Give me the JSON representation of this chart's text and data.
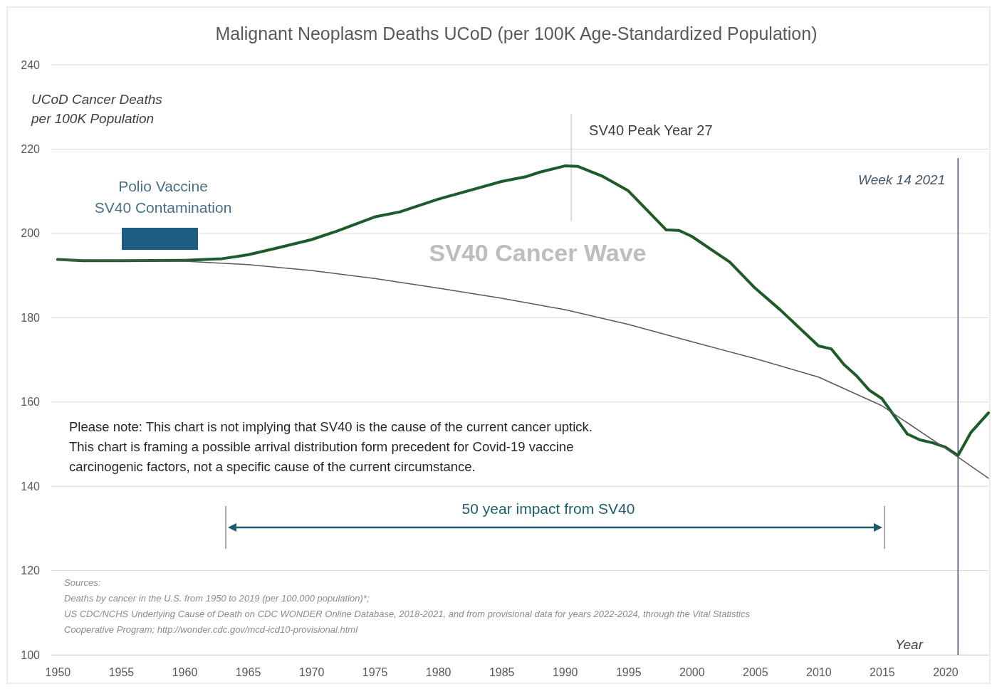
{
  "chart_data": {
    "type": "line",
    "title": "Malignant Neoplasm Deaths UCoD (per 100K Age-Standardized Population)",
    "xlabel": "Year",
    "ylabel": "UCoD Cancer Deaths\nper 100K Population",
    "xlim": [
      1949.5,
      2023.4
    ],
    "xticks": [
      1950,
      1955,
      1960,
      1965,
      1970,
      1975,
      1980,
      1985,
      1990,
      1995,
      2000,
      2005,
      2010,
      2015,
      2020
    ],
    "ylim": [
      100,
      240
    ],
    "yticks": [
      100,
      120,
      140,
      160,
      180,
      200,
      220,
      240
    ],
    "grid": "y",
    "series": [
      {
        "color": "#1e5b2a",
        "x": [
          1950,
          1952,
          1955,
          1960,
          1963,
          1965,
          1967,
          1970,
          1972,
          1975,
          1977,
          1980,
          1985,
          1987,
          1988,
          1990,
          1991,
          1993,
          1995,
          1998,
          1999,
          2000,
          2003,
          2005,
          2007,
          2010,
          2011,
          2012,
          2013,
          2014,
          2015,
          2016,
          2017,
          2018,
          2019,
          2020,
          2021,
          2022,
          2023.4
        ],
        "values": [
          193.8,
          193.5,
          193.5,
          193.6,
          194,
          194.9,
          196.3,
          198.5,
          200.5,
          203.9,
          205.1,
          208.1,
          212.3,
          213.5,
          214.5,
          216,
          215.9,
          213.5,
          210.1,
          200.8,
          200.7,
          199.3,
          193.2,
          187,
          181.8,
          173.3,
          172.6,
          168.9,
          166.2,
          162.8,
          160.8,
          156.6,
          152.4,
          151,
          150.3,
          149.3,
          147.3,
          152.7,
          157.4
        ]
      },
      {
        "color": "#595959",
        "x": [
          1950,
          1955,
          1960,
          1965,
          1970,
          1975,
          1980,
          1985,
          1990,
          1995,
          2000,
          2005,
          2010,
          2015,
          2020,
          2023.4
        ],
        "values": [
          193.7,
          193.6,
          193.4,
          192.6,
          191.2,
          189.3,
          187,
          184.6,
          181.9,
          178.4,
          174.3,
          170.3,
          165.9,
          159.1,
          149,
          141.9
        ]
      }
    ],
    "ref_lines": [
      {
        "axis": "x",
        "value": 1990.5,
        "label": "SV40 Peak Year 27",
        "color": "#bfbfbf"
      },
      {
        "axis": "x",
        "value": 2021,
        "label": "Week 14 2021",
        "color": "#44546a"
      }
    ],
    "annotations": [
      "Polio Vaccine\nSV40 Contamination",
      "SV40 Cancer Wave",
      "Please note: This chart is not implying that SV40 is the cause of the current cancer uptick. This chart is framing a possible arrival distribution form precedent for Covid-19 vaccine carcinogenic factors, not a specific cause of the current circumstance.",
      "50 year impact from SV40",
      "Sources:\nDeaths by cancer in the U.S. from 1950 to 2019 (per 100,000 population)*;\nUS CDC/NCHS Underlying Cause of Death on CDC WONDER Online Database, 2018-2021, and from provisional data for years 2022-2024, through the Vital Statistics Cooperative Program; http://wonder.cdc.gov/mcd-icd10-provisional.html"
    ]
  }
}
